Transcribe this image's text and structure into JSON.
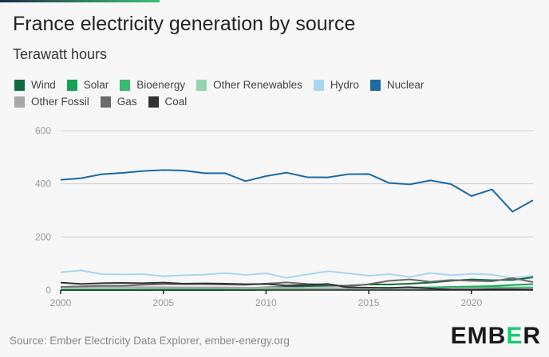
{
  "header": {
    "title": "France electricity generation by source",
    "subtitle": "Terawatt hours"
  },
  "footer": {
    "source": "Source: Ember Electricity Data Explorer, ember-energy.org",
    "logo": "EMBER"
  },
  "chart_data": {
    "type": "line",
    "title": "France electricity generation by source",
    "ylabel": "Terawatt hours",
    "x": [
      2000,
      2001,
      2002,
      2003,
      2004,
      2005,
      2006,
      2007,
      2008,
      2009,
      2010,
      2011,
      2012,
      2013,
      2014,
      2015,
      2016,
      2017,
      2018,
      2019,
      2020,
      2021,
      2022,
      2023
    ],
    "xticks": [
      "2000",
      "2005",
      "2010",
      "2015",
      "2020"
    ],
    "yticks": [
      "0",
      "200",
      "400",
      "600"
    ],
    "ylim": [
      0,
      600
    ],
    "grid": true,
    "legend": "top",
    "series": [
      {
        "name": "Wind",
        "color": "#0f6b3e",
        "values": [
          0,
          0,
          0,
          0,
          1,
          1,
          2,
          4,
          6,
          8,
          10,
          12,
          15,
          16,
          17,
          21,
          21,
          24,
          28,
          35,
          40,
          37,
          38,
          48
        ]
      },
      {
        "name": "Solar",
        "color": "#17a05a",
        "values": [
          0,
          0,
          0,
          0,
          0,
          0,
          0,
          0,
          0,
          0,
          1,
          2,
          4,
          5,
          6,
          7,
          8,
          9,
          10,
          12,
          13,
          15,
          19,
          22
        ]
      },
      {
        "name": "Bioenergy",
        "color": "#3dba72",
        "values": [
          4,
          4,
          4,
          4,
          4,
          5,
          5,
          5,
          5,
          5,
          6,
          6,
          7,
          7,
          7,
          8,
          9,
          9,
          10,
          10,
          10,
          10,
          10,
          10
        ]
      },
      {
        "name": "Other Renewables",
        "color": "#97d3ad",
        "values": [
          1,
          1,
          1,
          1,
          1,
          1,
          1,
          1,
          1,
          1,
          1,
          1,
          1,
          1,
          1,
          1,
          1,
          1,
          1,
          1,
          1,
          1,
          1,
          1
        ]
      },
      {
        "name": "Hydro",
        "color": "#a8d5f2",
        "values": [
          67,
          74,
          60,
          59,
          60,
          52,
          56,
          58,
          64,
          57,
          63,
          46,
          59,
          71,
          63,
          54,
          60,
          49,
          64,
          56,
          61,
          58,
          45,
          54
        ]
      },
      {
        "name": "Nuclear",
        "color": "#1d6aa5",
        "values": [
          415,
          421,
          436,
          441,
          448,
          452,
          450,
          440,
          440,
          410,
          429,
          442,
          425,
          424,
          436,
          437,
          403,
          398,
          413,
          399,
          354,
          379,
          295,
          338
        ]
      },
      {
        "name": "Other Fossil",
        "color": "#a8a8a8",
        "values": [
          12,
          12,
          12,
          12,
          11,
          11,
          10,
          10,
          10,
          9,
          9,
          9,
          8,
          8,
          7,
          7,
          7,
          7,
          6,
          6,
          6,
          6,
          6,
          5
        ]
      },
      {
        "name": "Gas",
        "color": "#6b6b6b",
        "values": [
          12,
          14,
          16,
          16,
          20,
          22,
          22,
          22,
          21,
          20,
          24,
          29,
          23,
          20,
          14,
          22,
          35,
          40,
          31,
          38,
          35,
          33,
          45,
          30
        ]
      },
      {
        "name": "Coal",
        "color": "#333333",
        "values": [
          28,
          23,
          26,
          27,
          26,
          28,
          24,
          25,
          24,
          22,
          23,
          17,
          20,
          23,
          10,
          9,
          8,
          11,
          6,
          2,
          1,
          3,
          3,
          1
        ]
      }
    ]
  }
}
